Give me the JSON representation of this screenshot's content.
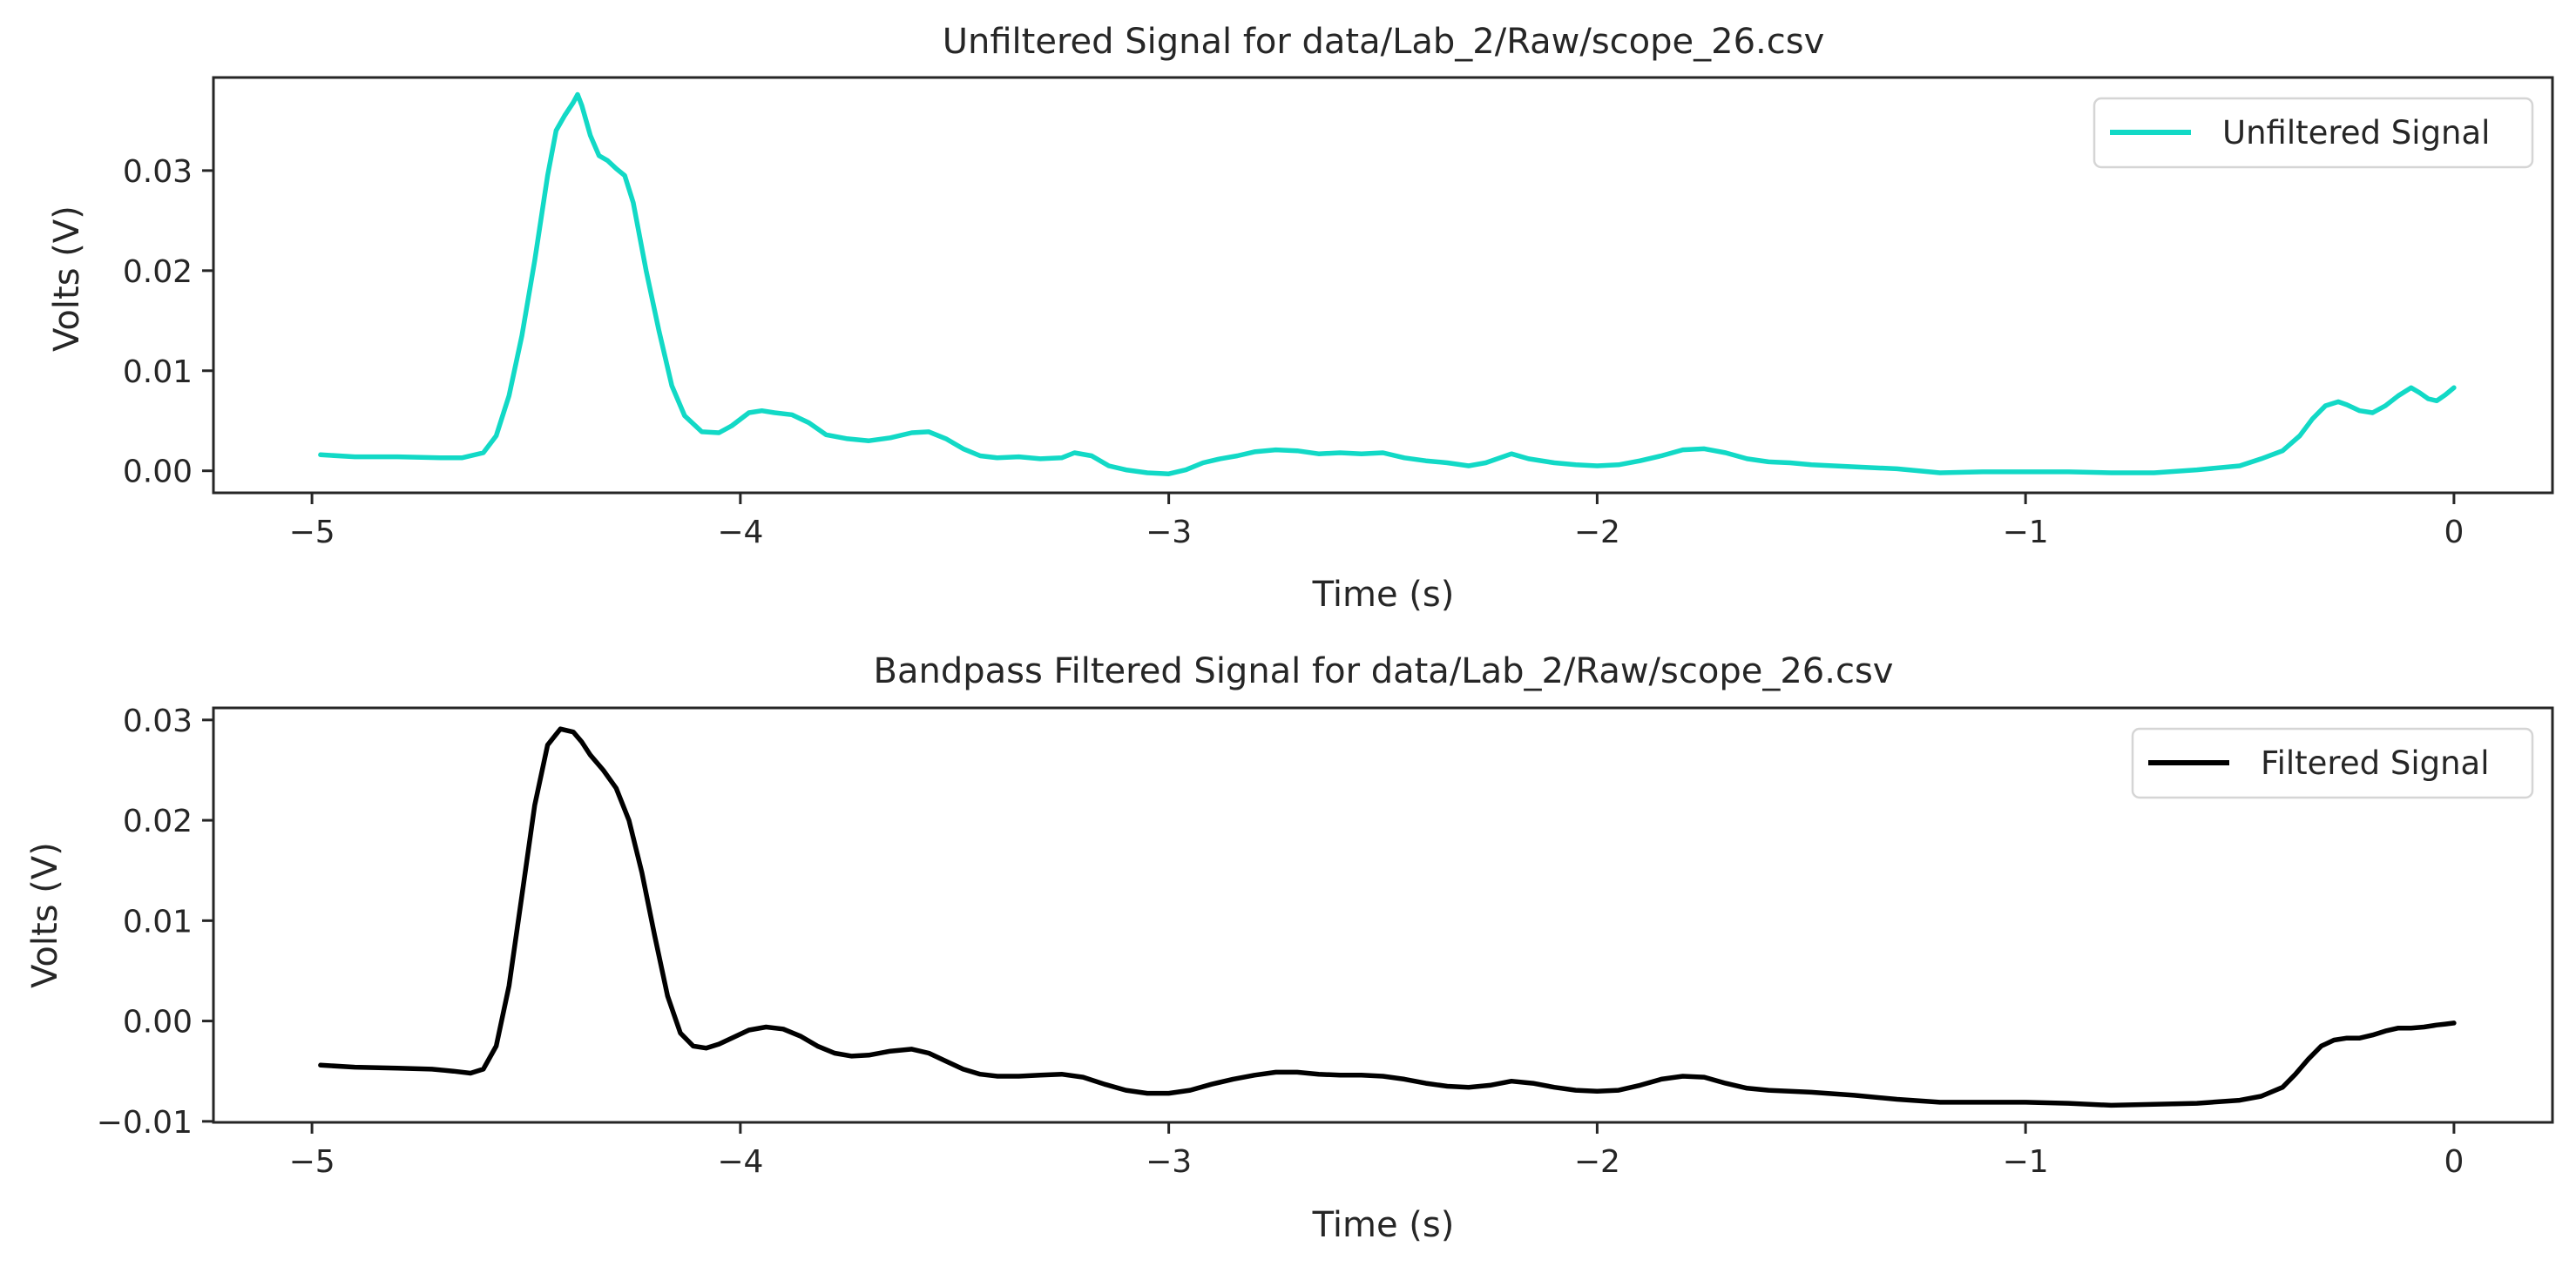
{
  "chart_data": [
    {
      "type": "line",
      "title": "Unfiltered Signal for data/Lab_2/Raw/scope_26.csv",
      "xlabel": "Time (s)",
      "ylabel": "Volts (V)",
      "xlim": [
        -5.23,
        0.23
      ],
      "ylim": [
        -0.0022,
        0.0393
      ],
      "xticks": [
        -5,
        -4,
        -3,
        -2,
        -1,
        0
      ],
      "xtick_labels": [
        "−5",
        "−4",
        "−3",
        "−2",
        "−1",
        "0"
      ],
      "yticks": [
        0.0,
        0.01,
        0.02,
        0.03
      ],
      "ytick_labels": [
        "0.00",
        "0.01",
        "0.02",
        "0.03"
      ],
      "grid": false,
      "legend_position": "top-right",
      "series": [
        {
          "name": "Unfiltered Signal",
          "color": "#12d9c6",
          "x": [
            -4.98,
            -4.9,
            -4.8,
            -4.7,
            -4.65,
            -4.6,
            -4.57,
            -4.54,
            -4.51,
            -4.48,
            -4.45,
            -4.43,
            -4.41,
            -4.39,
            -4.38,
            -4.37,
            -4.35,
            -4.33,
            -4.31,
            -4.29,
            -4.27,
            -4.25,
            -4.22,
            -4.19,
            -4.16,
            -4.13,
            -4.09,
            -4.05,
            -4.02,
            -3.98,
            -3.95,
            -3.92,
            -3.88,
            -3.84,
            -3.8,
            -3.75,
            -3.7,
            -3.65,
            -3.6,
            -3.56,
            -3.52,
            -3.48,
            -3.44,
            -3.4,
            -3.35,
            -3.3,
            -3.25,
            -3.22,
            -3.18,
            -3.14,
            -3.1,
            -3.05,
            -3.0,
            -2.96,
            -2.92,
            -2.88,
            -2.84,
            -2.8,
            -2.75,
            -2.7,
            -2.65,
            -2.6,
            -2.55,
            -2.5,
            -2.45,
            -2.4,
            -2.35,
            -2.3,
            -2.26,
            -2.2,
            -2.16,
            -2.1,
            -2.05,
            -2.0,
            -1.95,
            -1.9,
            -1.85,
            -1.8,
            -1.75,
            -1.7,
            -1.65,
            -1.6,
            -1.55,
            -1.5,
            -1.4,
            -1.3,
            -1.2,
            -1.1,
            -1.0,
            -0.9,
            -0.8,
            -0.7,
            -0.6,
            -0.5,
            -0.45,
            -0.4,
            -0.36,
            -0.33,
            -0.3,
            -0.27,
            -0.25,
            -0.22,
            -0.19,
            -0.16,
            -0.13,
            -0.1,
            -0.08,
            -0.06,
            -0.04,
            -0.02,
            0.0
          ],
          "y": [
            0.0016,
            0.0014,
            0.0014,
            0.0013,
            0.0013,
            0.0018,
            0.0035,
            0.0075,
            0.0135,
            0.021,
            0.0295,
            0.034,
            0.0355,
            0.0368,
            0.0376,
            0.0365,
            0.0335,
            0.0315,
            0.031,
            0.0302,
            0.0295,
            0.0268,
            0.02,
            0.014,
            0.0085,
            0.0055,
            0.0039,
            0.0038,
            0.0045,
            0.0058,
            0.006,
            0.0058,
            0.0056,
            0.0048,
            0.0036,
            0.0032,
            0.003,
            0.0033,
            0.0038,
            0.0039,
            0.0032,
            0.0022,
            0.0015,
            0.0013,
            0.0014,
            0.0012,
            0.0013,
            0.0018,
            0.0015,
            0.0005,
            0.0001,
            -0.0002,
            -0.0003,
            0.0001,
            0.0008,
            0.0012,
            0.0015,
            0.0019,
            0.0021,
            0.002,
            0.0017,
            0.0018,
            0.0017,
            0.0018,
            0.0013,
            0.001,
            0.0008,
            0.0005,
            0.0008,
            0.0017,
            0.0012,
            0.0008,
            0.0006,
            0.0005,
            0.0006,
            0.001,
            0.0015,
            0.0021,
            0.0022,
            0.0018,
            0.0012,
            0.0009,
            0.0008,
            0.0006,
            0.0004,
            0.0002,
            -0.0002,
            -0.0001,
            -0.0001,
            -0.0001,
            -0.0002,
            -0.0002,
            0.0001,
            0.0005,
            0.0012,
            0.002,
            0.0035,
            0.0052,
            0.0065,
            0.0069,
            0.0066,
            0.006,
            0.0058,
            0.0065,
            0.0075,
            0.0083,
            0.0078,
            0.0072,
            0.007,
            0.0076,
            0.0083
          ]
        }
      ]
    },
    {
      "type": "line",
      "title": "Bandpass Filtered Signal for data/Lab_2/Raw/scope_26.csv",
      "xlabel": "Time (s)",
      "ylabel": "Volts (V)",
      "xlim": [
        -5.23,
        0.23
      ],
      "ylim": [
        -0.0101,
        0.0312
      ],
      "xticks": [
        -5,
        -4,
        -3,
        -2,
        -1,
        0
      ],
      "xtick_labels": [
        "−5",
        "−4",
        "−3",
        "−2",
        "−1",
        "0"
      ],
      "yticks": [
        -0.01,
        0.0,
        0.01,
        0.02,
        0.03
      ],
      "ytick_labels": [
        "−0.01",
        "0.00",
        "0.01",
        "0.02",
        "0.03"
      ],
      "grid": false,
      "legend_position": "top-right",
      "series": [
        {
          "name": "Filtered Signal",
          "color": "#000000",
          "x": [
            -4.98,
            -4.9,
            -4.8,
            -4.72,
            -4.67,
            -4.63,
            -4.6,
            -4.57,
            -4.54,
            -4.51,
            -4.48,
            -4.45,
            -4.42,
            -4.39,
            -4.37,
            -4.35,
            -4.32,
            -4.29,
            -4.26,
            -4.23,
            -4.2,
            -4.17,
            -4.14,
            -4.11,
            -4.08,
            -4.05,
            -4.02,
            -3.98,
            -3.94,
            -3.9,
            -3.86,
            -3.82,
            -3.78,
            -3.74,
            -3.7,
            -3.65,
            -3.6,
            -3.56,
            -3.52,
            -3.48,
            -3.44,
            -3.4,
            -3.35,
            -3.3,
            -3.25,
            -3.2,
            -3.15,
            -3.1,
            -3.05,
            -3.0,
            -2.95,
            -2.9,
            -2.85,
            -2.8,
            -2.75,
            -2.7,
            -2.65,
            -2.6,
            -2.55,
            -2.5,
            -2.45,
            -2.4,
            -2.35,
            -2.3,
            -2.25,
            -2.2,
            -2.15,
            -2.1,
            -2.05,
            -2.0,
            -1.95,
            -1.9,
            -1.85,
            -1.8,
            -1.75,
            -1.7,
            -1.65,
            -1.6,
            -1.55,
            -1.5,
            -1.4,
            -1.3,
            -1.2,
            -1.1,
            -1.0,
            -0.9,
            -0.8,
            -0.7,
            -0.6,
            -0.5,
            -0.45,
            -0.4,
            -0.37,
            -0.34,
            -0.31,
            -0.28,
            -0.25,
            -0.22,
            -0.19,
            -0.16,
            -0.13,
            -0.1,
            -0.07,
            -0.04,
            -0.02,
            0.0
          ],
          "y": [
            -0.0044,
            -0.0046,
            -0.0047,
            -0.0048,
            -0.005,
            -0.0052,
            -0.0048,
            -0.0025,
            0.0035,
            0.0125,
            0.0215,
            0.0275,
            0.0291,
            0.0288,
            0.0278,
            0.0265,
            0.025,
            0.0232,
            0.02,
            0.0148,
            0.0085,
            0.0025,
            -0.0012,
            -0.0025,
            -0.0027,
            -0.0023,
            -0.0017,
            -0.0009,
            -0.0006,
            -0.0008,
            -0.0015,
            -0.0025,
            -0.0032,
            -0.0035,
            -0.0034,
            -0.003,
            -0.0028,
            -0.0032,
            -0.004,
            -0.0048,
            -0.0053,
            -0.0055,
            -0.0055,
            -0.0054,
            -0.0053,
            -0.0056,
            -0.0063,
            -0.0069,
            -0.0072,
            -0.0072,
            -0.0069,
            -0.0063,
            -0.0058,
            -0.0054,
            -0.0051,
            -0.0051,
            -0.0053,
            -0.0054,
            -0.0054,
            -0.0055,
            -0.0058,
            -0.0062,
            -0.0065,
            -0.0066,
            -0.0064,
            -0.006,
            -0.0062,
            -0.0066,
            -0.0069,
            -0.007,
            -0.0069,
            -0.0064,
            -0.0058,
            -0.0055,
            -0.0056,
            -0.0062,
            -0.0067,
            -0.0069,
            -0.007,
            -0.0071,
            -0.0074,
            -0.0078,
            -0.0081,
            -0.0081,
            -0.0081,
            -0.0082,
            -0.0084,
            -0.0083,
            -0.0082,
            -0.0079,
            -0.0075,
            -0.0066,
            -0.0053,
            -0.0038,
            -0.0025,
            -0.0019,
            -0.0017,
            -0.0017,
            -0.0014,
            -0.001,
            -0.0007,
            -0.0007,
            -0.0006,
            -0.0004,
            -0.0003,
            -0.0002
          ]
        }
      ]
    }
  ]
}
